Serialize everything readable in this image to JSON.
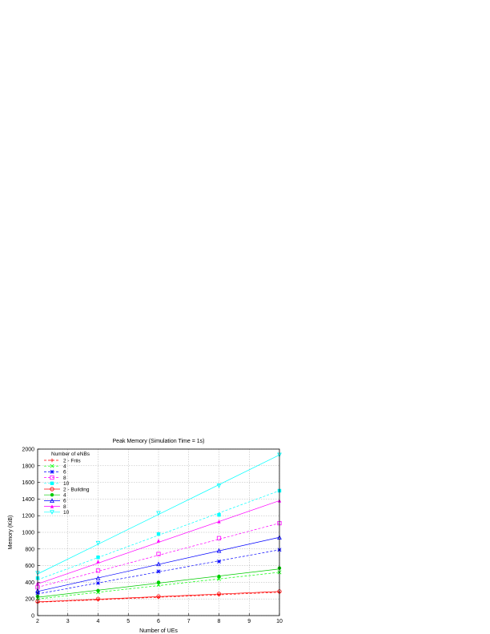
{
  "chart_data": {
    "type": "line",
    "title": "Peak Memory (Simulation Time = 1s)",
    "xlabel": "Number of UEs",
    "ylabel": "Memory (KiB)",
    "xlim": [
      2,
      10
    ],
    "ylim": [
      0,
      2000
    ],
    "xticks": [
      "2",
      "3",
      "4",
      "5",
      "6",
      "7",
      "8",
      "9",
      "10"
    ],
    "yticks": [
      "0",
      "200",
      "400",
      "600",
      "800",
      "1000",
      "1200",
      "1400",
      "1600",
      "1800",
      "2000"
    ],
    "grid": true,
    "legend_title": "Number of eNBs",
    "legend_position": "top-left",
    "x": [
      2,
      4,
      6,
      8,
      10
    ],
    "series": [
      {
        "name": "2 - Friis",
        "label": "2 - Friis",
        "color": "#ff0000",
        "marker": "plus",
        "dashed": true,
        "values": [
          160,
          190,
          220,
          250,
          280
        ],
        "fit": [
          160,
          280
        ]
      },
      {
        "name": "4",
        "label": "4",
        "color": "#00ff00",
        "marker": "cross",
        "dashed": true,
        "values": [
          210,
          280,
          370,
          440,
          520
        ],
        "fit": [
          200,
          520
        ]
      },
      {
        "name": "6",
        "label": "6",
        "color": "#0000ff",
        "marker": "star",
        "dashed": true,
        "values": [
          270,
          390,
          530,
          650,
          790
        ],
        "fit": [
          260,
          790
        ]
      },
      {
        "name": "8",
        "label": "8",
        "color": "#ff00ff",
        "marker": "square",
        "dashed": true,
        "values": [
          340,
          540,
          740,
          930,
          1110
        ],
        "fit": [
          340,
          1110
        ]
      },
      {
        "name": "10",
        "label": "10",
        "color": "#00ffff",
        "marker": "filled-square",
        "dashed": true,
        "values": [
          450,
          700,
          980,
          1210,
          1500
        ],
        "fit": [
          430,
          1500
        ]
      },
      {
        "name": "2 - Building",
        "label": "2 - Building",
        "color": "#ff0000",
        "marker": "circle",
        "dashed": false,
        "values": [
          170,
          200,
          230,
          260,
          290
        ],
        "fit": [
          165,
          290
        ]
      },
      {
        "name": "4",
        "label": "4",
        "color": "#00cc00",
        "marker": "filled-circle",
        "dashed": false,
        "values": [
          230,
          300,
          400,
          470,
          570
        ],
        "fit": [
          220,
          560
        ]
      },
      {
        "name": "6",
        "label": "6",
        "color": "#0000ff",
        "marker": "triangle",
        "dashed": false,
        "values": [
          300,
          450,
          620,
          780,
          940
        ],
        "fit": [
          290,
          940
        ]
      },
      {
        "name": "8",
        "label": "8",
        "color": "#ff00ff",
        "marker": "filled-triangle",
        "dashed": false,
        "values": [
          390,
          650,
          900,
          1130,
          1380
        ],
        "fit": [
          380,
          1380
        ]
      },
      {
        "name": "10",
        "label": "10",
        "color": "#00ffff",
        "marker": "inv-triangle",
        "dashed": false,
        "values": [
          510,
          870,
          1230,
          1560,
          1930
        ],
        "fit": [
          500,
          1930
        ]
      }
    ]
  }
}
